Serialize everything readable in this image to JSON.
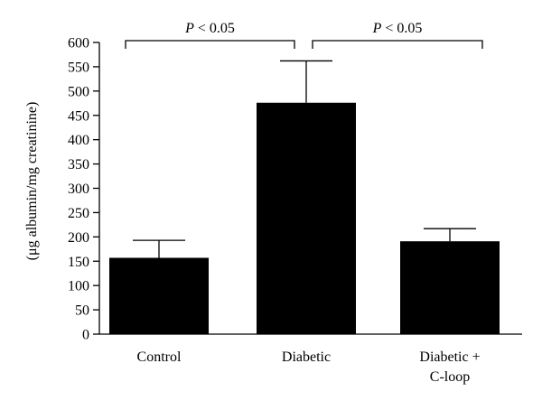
{
  "chart_data": {
    "type": "bar",
    "title": "",
    "xlabel": "",
    "ylabel": "(μg albumin/mg creatinine)",
    "ylim": [
      0,
      600
    ],
    "yticks": [
      0,
      50,
      100,
      150,
      200,
      250,
      300,
      350,
      400,
      450,
      500,
      550,
      600
    ],
    "categories": [
      [
        "Control"
      ],
      [
        "Diabetic"
      ],
      [
        "Diabetic +",
        "C-loop"
      ]
    ],
    "values": [
      157,
      476,
      191
    ],
    "error_upper": [
      193,
      562,
      217
    ],
    "significance": [
      {
        "from": 0,
        "to": 1,
        "label": "P < 0.05"
      },
      {
        "from": 1,
        "to": 2,
        "label": "P < 0.05"
      }
    ],
    "grid": false,
    "legend": "none",
    "bar_color": "#000000",
    "axis_color": "#000000"
  }
}
